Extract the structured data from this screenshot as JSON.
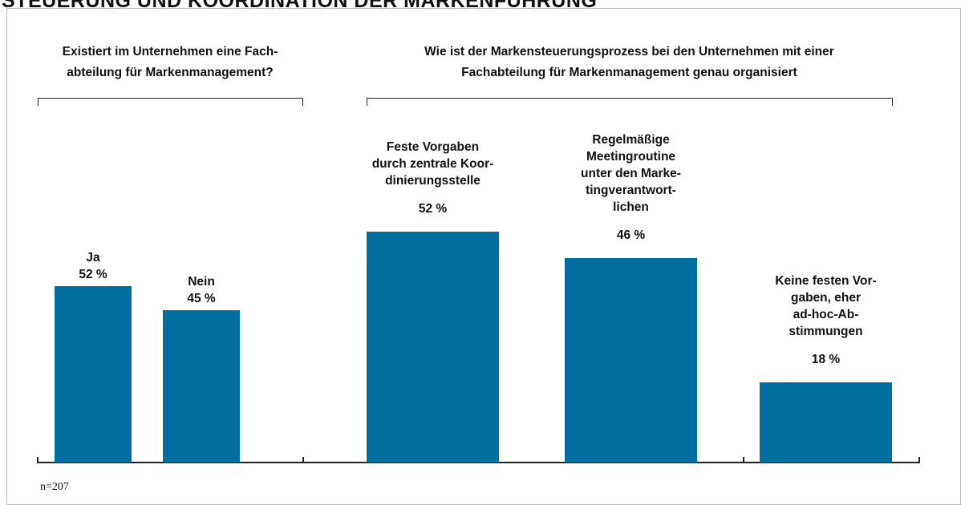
{
  "title": "STEUERUNG UND KOORDINATION DER MARKENFÜHRUNG",
  "note": "n=207",
  "chart_data": [
    {
      "type": "bar",
      "title": "Existiert im Unternehmen eine Fach-\nabteilung für Markenmanagement?",
      "categories": [
        "Ja",
        "Nein"
      ],
      "values": [
        52,
        45
      ],
      "value_labels": [
        "52 %",
        "45 %"
      ],
      "color": "#006f9f"
    },
    {
      "type": "bar",
      "title": "Wie ist der Markensteuerungsprozess bei den Unternehmen mit einer\nFachabteilung für Markenmanagement genau organisiert",
      "categories": [
        "Feste Vorgaben\ndurch zentrale Koor-\ndinierungsstelle",
        "Regelmäßige\nMeetingroutine\nunter den Marke-\ntingverantwort-\nlichen",
        "Keine festen Vor-\ngaben, eher\nad-hoc-Ab-\nstimmungen"
      ],
      "values": [
        52,
        46,
        18
      ],
      "value_labels": [
        "52 %",
        "46 %",
        "18 %"
      ],
      "color": "#006f9f"
    }
  ]
}
